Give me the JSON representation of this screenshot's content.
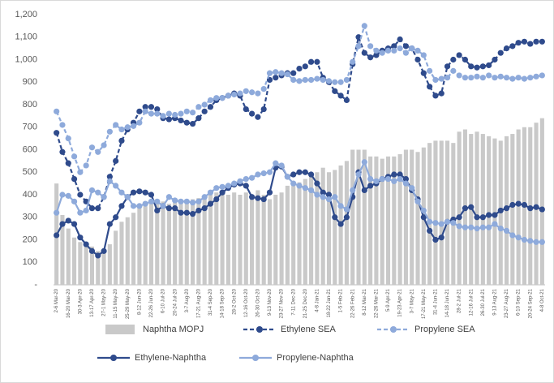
{
  "chart_data": {
    "type": "combo",
    "categories": [
      "2-6 Mar-20",
      null,
      "16-20 Mar-20",
      null,
      "30-3 Apr-20",
      null,
      "13-17 Apr-20",
      null,
      "27-1 May-20",
      null,
      "11-15 May-20",
      null,
      "25-29 May-20",
      null,
      "8-12 Jun-20",
      null,
      "22-26 Jun-20",
      null,
      "6-10 Jul-20",
      null,
      "20-24 Jul-20",
      null,
      "3-7 Aug-20",
      null,
      "17-21 Aug-20",
      null,
      "31-4 Sep-20",
      null,
      "14-18 Sep-20",
      null,
      "28-2 Oct-20",
      null,
      "12-16 Oct-20",
      null,
      "26-30 Oct-20",
      null,
      "9-13 Nov-20",
      null,
      "23-27 Nov-20",
      null,
      "7-11 Dec-20",
      null,
      "21-25 Dec-20",
      null,
      "4-8 Jan-21",
      null,
      "18-22 Jan-21",
      null,
      "1-5 Feb-21",
      null,
      "22-26 Feb-21",
      null,
      "8-12 Mar-21",
      null,
      "22-26 Mar-21",
      null,
      "5-9 Apr-21",
      null,
      "19-23 Apr-21",
      null,
      "3-7 May-21",
      null,
      "17-21 May-21",
      null,
      "31-4 Jun-21",
      null,
      "14-18 Jun-21",
      null,
      "28-2 Jul-21",
      null,
      "12-16 Jul-21",
      null,
      "26-30 Jul-21",
      null,
      "9-13 Aug-21",
      null,
      "23-27 Aug-21",
      null,
      "6-10 Sep-21",
      null,
      "20-24 Sep-21",
      null,
      "4-8 Oct-21"
    ],
    "series": [
      {
        "name": "Naphtha MOPJ",
        "type": "bar",
        "color": "#c9c9c9",
        "values": [
          450,
          310,
          250,
          210,
          190,
          180,
          170,
          150,
          160,
          180,
          240,
          280,
          300,
          320,
          350,
          360,
          360,
          360,
          370,
          360,
          370,
          370,
          375,
          380,
          385,
          395,
          400,
          410,
          410,
          400,
          410,
          400,
          410,
          400,
          420,
          400,
          380,
          400,
          410,
          440,
          450,
          455,
          470,
          490,
          500,
          520,
          500,
          510,
          530,
          550,
          600,
          600,
          600,
          570,
          570,
          560,
          570,
          570,
          580,
          600,
          600,
          590,
          610,
          630,
          640,
          640,
          640,
          630,
          680,
          690,
          670,
          680,
          670,
          660,
          650,
          640,
          660,
          670,
          690,
          700,
          700,
          720,
          740
        ]
      },
      {
        "name": "Ethylene SEA",
        "type": "line",
        "dashed": true,
        "color": "#2f4b8c",
        "values": [
          675,
          590,
          540,
          470,
          400,
          370,
          340,
          340,
          390,
          480,
          550,
          640,
          690,
          720,
          770,
          790,
          790,
          780,
          740,
          735,
          740,
          730,
          720,
          715,
          740,
          770,
          790,
          820,
          830,
          840,
          850,
          840,
          780,
          760,
          745,
          780,
          910,
          920,
          930,
          940,
          940,
          960,
          970,
          990,
          990,
          920,
          900,
          860,
          840,
          820,
          980,
          1100,
          1030,
          1010,
          1020,
          1040,
          1050,
          1060,
          1090,
          1060,
          1050,
          1000,
          940,
          880,
          840,
          850,
          970,
          1000,
          1020,
          1000,
          970,
          965,
          970,
          975,
          1000,
          1030,
          1050,
          1060,
          1075,
          1080,
          1070,
          1080,
          1080
        ]
      },
      {
        "name": "Propylene SEA",
        "type": "line",
        "dashed": true,
        "color": "#8eaadb",
        "values": [
          770,
          710,
          650,
          570,
          500,
          530,
          610,
          590,
          620,
          680,
          710,
          690,
          700,
          705,
          720,
          770,
          760,
          760,
          750,
          760,
          755,
          760,
          770,
          765,
          790,
          800,
          820,
          830,
          830,
          840,
          845,
          850,
          860,
          855,
          850,
          870,
          940,
          945,
          940,
          935,
          910,
          905,
          910,
          910,
          915,
          910,
          905,
          900,
          900,
          910,
          990,
          1060,
          1150,
          1060,
          1040,
          1030,
          1040,
          1040,
          1050,
          1030,
          1050,
          1040,
          1020,
          950,
          910,
          915,
          920,
          950,
          930,
          920,
          920,
          925,
          920,
          930,
          920,
          925,
          920,
          915,
          920,
          915,
          920,
          925,
          930
        ]
      },
      {
        "name": "Ethylene-Naphtha",
        "type": "line",
        "dashed": false,
        "color": "#2f4b8c",
        "values": [
          220,
          270,
          285,
          270,
          210,
          180,
          150,
          130,
          150,
          270,
          300,
          350,
          390,
          410,
          415,
          410,
          400,
          330,
          350,
          340,
          340,
          320,
          320,
          315,
          330,
          340,
          360,
          380,
          410,
          430,
          445,
          450,
          440,
          390,
          385,
          380,
          410,
          520,
          525,
          480,
          490,
          500,
          500,
          490,
          450,
          410,
          400,
          300,
          270,
          300,
          390,
          500,
          420,
          440,
          450,
          470,
          480,
          490,
          490,
          470,
          420,
          380,
          300,
          240,
          200,
          210,
          280,
          290,
          300,
          340,
          345,
          300,
          300,
          310,
          310,
          330,
          340,
          355,
          360,
          355,
          340,
          345,
          335
        ]
      },
      {
        "name": "Propylene-Naphtha",
        "type": "line",
        "dashed": false,
        "color": "#8eaadb",
        "values": [
          320,
          400,
          395,
          370,
          320,
          330,
          420,
          410,
          390,
          460,
          440,
          410,
          390,
          350,
          350,
          360,
          370,
          370,
          350,
          390,
          375,
          370,
          370,
          365,
          370,
          390,
          410,
          430,
          435,
          440,
          450,
          460,
          470,
          475,
          490,
          495,
          500,
          540,
          530,
          480,
          450,
          440,
          430,
          420,
          400,
          390,
          380,
          390,
          350,
          335,
          420,
          490,
          545,
          470,
          460,
          470,
          470,
          460,
          470,
          450,
          430,
          370,
          330,
          280,
          275,
          270,
          280,
          275,
          260,
          255,
          255,
          250,
          255,
          255,
          270,
          250,
          240,
          220,
          210,
          200,
          195,
          190,
          190
        ]
      }
    ],
    "ylim": [
      0,
      1200
    ],
    "yticks": [
      {
        "value": 0,
        "label": "-"
      },
      100,
      200,
      300,
      400,
      500,
      600,
      700,
      800,
      900,
      {
        "value": 1000,
        "label": "1,000"
      },
      {
        "value": 1100,
        "label": "1,100"
      },
      {
        "value": 1200,
        "label": "1,200"
      }
    ],
    "legend": "bottom"
  }
}
